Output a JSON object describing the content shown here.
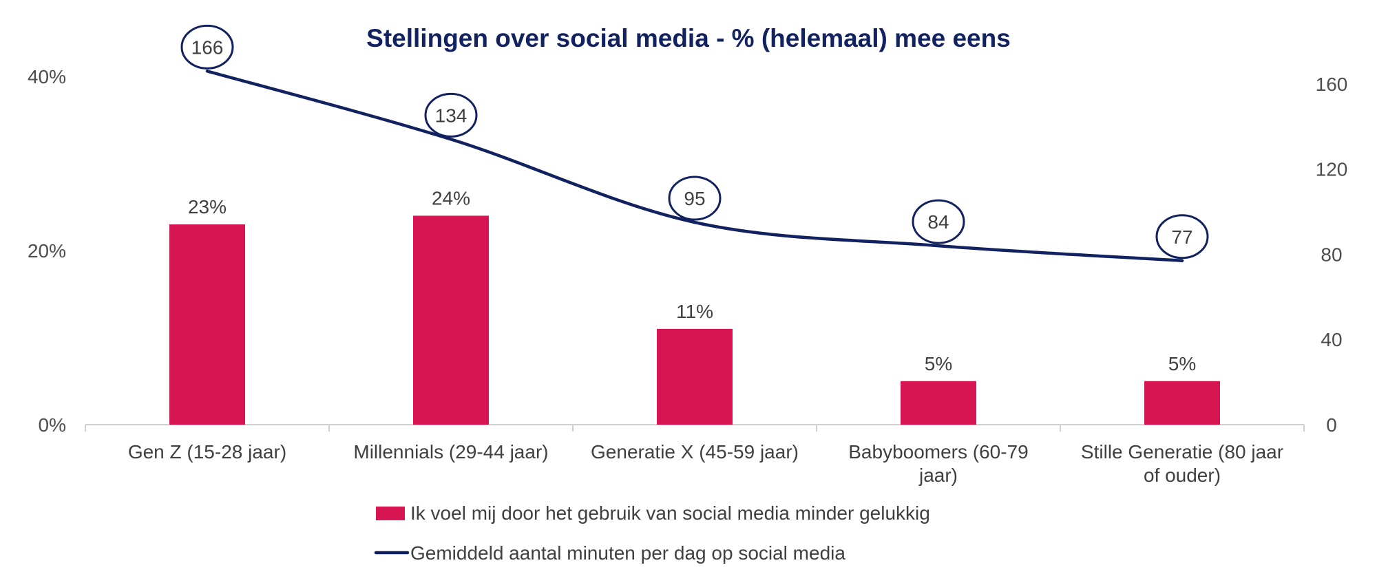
{
  "chart_data": {
    "type": "bar",
    "title": "Stellingen over social media - % (helemaal) mee eens",
    "categories": [
      [
        "Gen Z (15-28 jaar)"
      ],
      [
        "Millennials (29-44 jaar)"
      ],
      [
        "Generatie X (45-59 jaar)"
      ],
      [
        "Babyboomers (60-79",
        "jaar)"
      ],
      [
        "Stille Generatie (80 jaar",
        "of ouder)"
      ]
    ],
    "series": [
      {
        "name": "Ik voel mij door het gebruik van social media minder gelukkig",
        "type": "bar",
        "axis": "left",
        "color": "#d81553",
        "values": [
          23,
          24,
          11,
          5,
          5
        ],
        "labels": [
          "23%",
          "24%",
          "11%",
          "5%",
          "5%"
        ]
      },
      {
        "name": "Gemiddeld aantal minuten per dag op social media",
        "type": "line",
        "axis": "right",
        "color": "#12215f",
        "values": [
          166,
          134,
          95,
          84,
          77
        ],
        "labels": [
          "166",
          "134",
          "95",
          "84",
          "77"
        ]
      }
    ],
    "y_left": {
      "min": 0,
      "max": 40,
      "ticks": [
        0,
        20,
        40
      ],
      "tick_labels": [
        "0%",
        "20%",
        "40%"
      ]
    },
    "y_right": {
      "min": 0,
      "max": 170,
      "ticks": [
        0,
        40,
        80,
        120,
        160
      ],
      "tick_labels": [
        "0",
        "40",
        "80",
        "120",
        "160"
      ]
    },
    "grid": false,
    "legend_position": "bottom"
  }
}
